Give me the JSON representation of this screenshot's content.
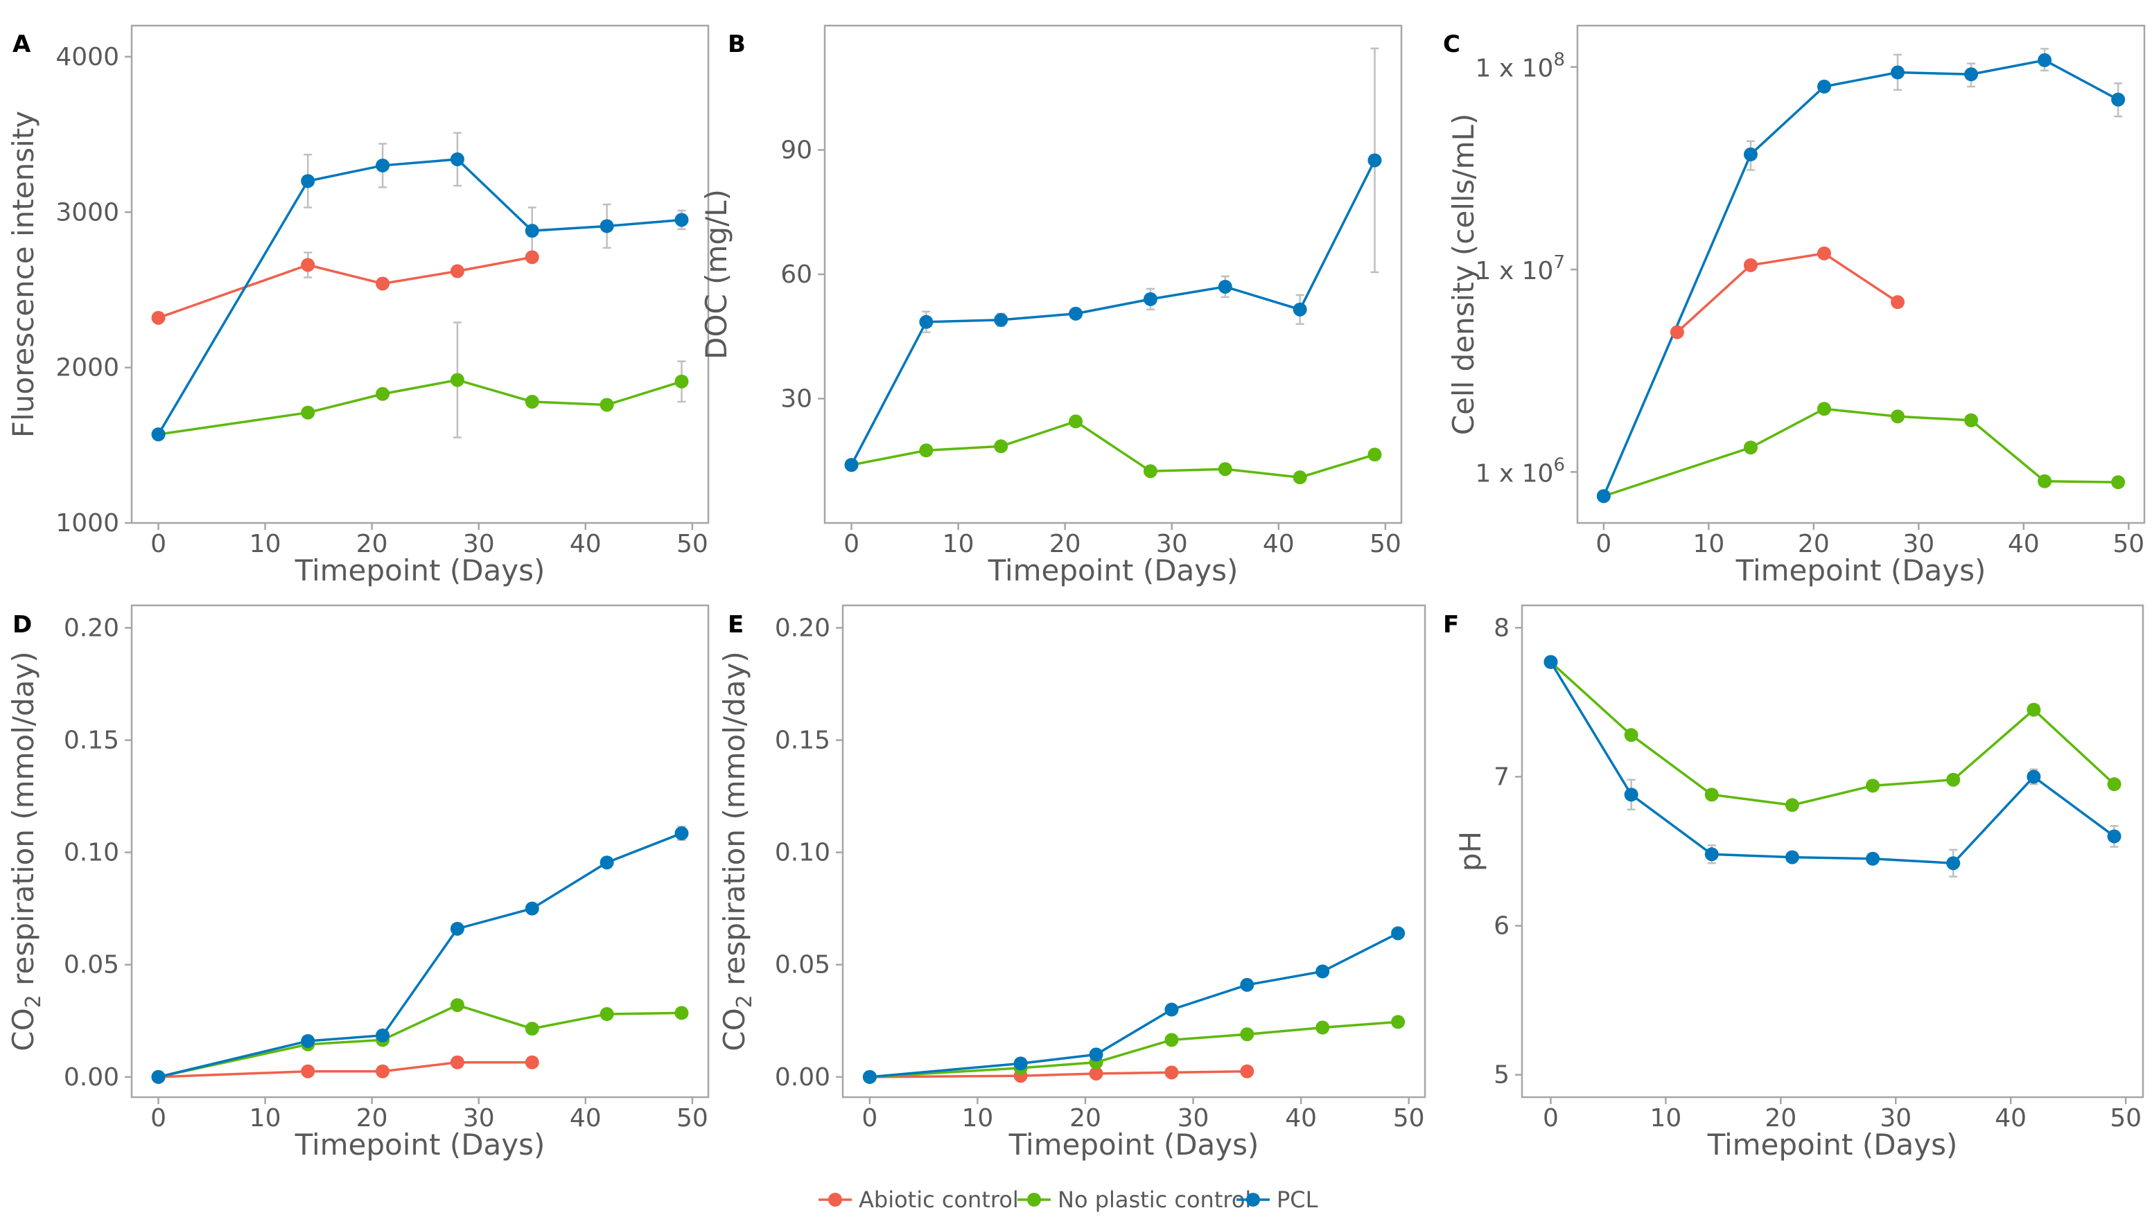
{
  "colors": {
    "abiotic": "#F0604D",
    "no_plastic": "#5DB90B",
    "pcl": "#0077BB",
    "errorbar": "#BFBFBF",
    "axis_text": "#595959",
    "frame": "#A6A6A6"
  },
  "legend": {
    "items": [
      {
        "key": "abiotic",
        "label": "Abiotic control"
      },
      {
        "key": "no_plastic",
        "label": "No plastic control"
      },
      {
        "key": "pcl",
        "label": "PCL"
      }
    ]
  },
  "chart_data": [
    {
      "panel": "A",
      "type": "line",
      "xlabel": "Timepoint (Days)",
      "ylabel": "Fluorescence intensity",
      "xlim": [
        -2.5,
        51.5
      ],
      "ylim": [
        1000,
        4200
      ],
      "xticks": [
        "0",
        "10",
        "20",
        "30",
        "40",
        "50"
      ],
      "yticks": [
        {
          "v": 1000,
          "label": "1000"
        },
        {
          "v": 2000,
          "label": "2000"
        },
        {
          "v": 3000,
          "label": "3000"
        },
        {
          "v": 4000,
          "label": "4000"
        }
      ],
      "series": [
        {
          "key": "abiotic",
          "name": "Abiotic control",
          "x": [
            0,
            14,
            21,
            28,
            35
          ],
          "y": [
            2320,
            2660,
            2540,
            2620,
            2710
          ],
          "err": [
            0,
            80,
            0,
            0,
            0
          ]
        },
        {
          "key": "no_plastic",
          "name": "No plastic control",
          "x": [
            0,
            14,
            21,
            28,
            35,
            42,
            49
          ],
          "y": [
            1570,
            1710,
            1830,
            1920,
            1780,
            1760,
            1910
          ],
          "err": [
            0,
            0,
            0,
            370,
            0,
            0,
            130
          ]
        },
        {
          "key": "pcl",
          "name": "PCL",
          "x": [
            0,
            14,
            21,
            28,
            35,
            42,
            49
          ],
          "y": [
            1570,
            3200,
            3300,
            3340,
            2880,
            2910,
            2950
          ],
          "err": [
            0,
            170,
            140,
            170,
            150,
            140,
            60
          ]
        }
      ]
    },
    {
      "panel": "B",
      "type": "line",
      "xlabel": "Timepoint (Days)",
      "ylabel": "DOC (mg/L)",
      "xlim": [
        -2.5,
        51.5
      ],
      "ylim": [
        0,
        120
      ],
      "xticks": [
        "0",
        "10",
        "20",
        "30",
        "40",
        "50"
      ],
      "yticks": [
        {
          "v": 30,
          "label": "30"
        },
        {
          "v": 60,
          "label": "60"
        },
        {
          "v": 90,
          "label": "90"
        }
      ],
      "series": [
        {
          "key": "no_plastic",
          "name": "No plastic control",
          "x": [
            0,
            7,
            14,
            21,
            28,
            35,
            42,
            49
          ],
          "y": [
            14,
            17.5,
            18.5,
            24.5,
            12.5,
            13,
            11,
            16.5
          ],
          "err": [
            0,
            0,
            0,
            0,
            0,
            0,
            0,
            0
          ]
        },
        {
          "key": "pcl",
          "name": "PCL",
          "x": [
            0,
            7,
            14,
            21,
            28,
            35,
            42,
            49
          ],
          "y": [
            14,
            48.5,
            49,
            50.5,
            54,
            57,
            51.5,
            87.5
          ],
          "err": [
            0,
            2.5,
            1.5,
            0,
            2.5,
            2.5,
            3.5,
            27
          ]
        }
      ]
    },
    {
      "panel": "C",
      "type": "line",
      "yscale": "log",
      "xlabel": "Timepoint (Days)",
      "ylabel": "Cell density (cells/mL)",
      "xlim": [
        -2.5,
        51.5
      ],
      "ylim": [
        560000,
        160000000
      ],
      "xticks": [
        "0",
        "10",
        "20",
        "30",
        "40",
        "50"
      ],
      "yticks": [
        {
          "v": 1000000,
          "base": "1 x 10",
          "exp": "6"
        },
        {
          "v": 10000000,
          "base": "1 x 10",
          "exp": "7"
        },
        {
          "v": 100000000,
          "base": "1 x 10",
          "exp": "8"
        }
      ],
      "series": [
        {
          "key": "abiotic",
          "name": "Abiotic control",
          "x": [
            7,
            14,
            21,
            28
          ],
          "y": [
            4900000,
            10500000,
            12000000,
            6900000
          ],
          "err_lo": [
            0,
            0,
            0,
            0
          ],
          "err_hi": [
            0,
            0,
            0,
            0
          ]
        },
        {
          "key": "no_plastic",
          "name": "No plastic control",
          "x": [
            0,
            14,
            21,
            28,
            35,
            42,
            49
          ],
          "y": [
            760000,
            1320000,
            2050000,
            1880000,
            1800000,
            900000,
            890000
          ],
          "err_lo": [
            0,
            0,
            0,
            0,
            0,
            0,
            0
          ],
          "err_hi": [
            0,
            0,
            0,
            0,
            0,
            0,
            0
          ]
        },
        {
          "key": "pcl",
          "name": "PCL",
          "x": [
            0,
            14,
            21,
            28,
            35,
            42,
            49
          ],
          "y": [
            760000,
            37000000,
            80000000,
            94000000,
            92000000,
            108000000,
            69000000
          ],
          "err_lo": [
            0,
            31000000,
            0,
            77000000,
            80000000,
            96000000,
            57000000
          ],
          "err_hi": [
            0,
            43000000,
            0,
            115000000,
            104000000,
            123000000,
            83000000
          ]
        }
      ]
    },
    {
      "panel": "D",
      "type": "line",
      "xlabel": "Timepoint (Days)",
      "ylabel": "CO2 respiration (mmol/day)",
      "ylabel_parts": {
        "pre": "CO",
        "sub": "2",
        "post": " respiration (mmol/day)"
      },
      "xlim": [
        -2.5,
        51.5
      ],
      "ylim": [
        -0.009,
        0.21
      ],
      "xticks": [
        "0",
        "10",
        "20",
        "30",
        "40",
        "50"
      ],
      "yticks": [
        {
          "v": 0,
          "label": "0.00"
        },
        {
          "v": 0.05,
          "label": "0.05"
        },
        {
          "v": 0.1,
          "label": "0.10"
        },
        {
          "v": 0.15,
          "label": "0.15"
        },
        {
          "v": 0.2,
          "label": "0.20"
        }
      ],
      "series": [
        {
          "key": "abiotic",
          "name": "Abiotic control",
          "x": [
            0,
            14,
            21,
            28,
            35
          ],
          "y": [
            0,
            0.0025,
            0.0025,
            0.0065,
            0.0065
          ],
          "err": [
            0,
            0,
            0,
            0,
            0
          ]
        },
        {
          "key": "no_plastic",
          "name": "No plastic control",
          "x": [
            0,
            14,
            21,
            28,
            35,
            42,
            49
          ],
          "y": [
            0,
            0.0145,
            0.0165,
            0.032,
            0.0215,
            0.028,
            0.0285
          ],
          "err": [
            0,
            0,
            0,
            0,
            0,
            0,
            0
          ]
        },
        {
          "key": "pcl",
          "name": "PCL",
          "x": [
            0,
            14,
            21,
            28,
            35,
            42,
            49
          ],
          "y": [
            0,
            0.016,
            0.0185,
            0.066,
            0.075,
            0.0955,
            0.1085
          ],
          "err": [
            0,
            0.0015,
            0.0015,
            0.002,
            0.002,
            0.002,
            0.003
          ]
        }
      ]
    },
    {
      "panel": "E",
      "type": "line",
      "xlabel": "Timepoint (Days)",
      "ylabel": "CO2 respiration (mmol/day)",
      "ylabel_parts": {
        "pre": "CO",
        "sub": "2",
        "post": " respiration (mmol/day)"
      },
      "xlim": [
        -2.5,
        51.5
      ],
      "ylim": [
        -0.009,
        0.21
      ],
      "xticks": [
        "0",
        "10",
        "20",
        "30",
        "40",
        "50"
      ],
      "yticks": [
        {
          "v": 0,
          "label": "0.00"
        },
        {
          "v": 0.05,
          "label": "0.05"
        },
        {
          "v": 0.1,
          "label": "0.10"
        },
        {
          "v": 0.15,
          "label": "0.15"
        },
        {
          "v": 0.2,
          "label": "0.20"
        }
      ],
      "series": [
        {
          "key": "abiotic",
          "name": "Abiotic control",
          "x": [
            0,
            14,
            21,
            28,
            35
          ],
          "y": [
            0,
            0.0005,
            0.0015,
            0.002,
            0.0025
          ],
          "err": [
            0,
            0,
            0,
            0,
            0
          ]
        },
        {
          "key": "no_plastic",
          "name": "No plastic control",
          "x": [
            0,
            14,
            21,
            28,
            35,
            42,
            49
          ],
          "y": [
            0,
            0.004,
            0.0065,
            0.0165,
            0.019,
            0.022,
            0.0245
          ],
          "err": [
            0,
            0,
            0,
            0,
            0,
            0,
            0
          ]
        },
        {
          "key": "pcl",
          "name": "PCL",
          "x": [
            0,
            14,
            21,
            28,
            35,
            42,
            49
          ],
          "y": [
            0,
            0.006,
            0.01,
            0.03,
            0.041,
            0.047,
            0.064
          ],
          "err": [
            0,
            0.0015,
            0.0015,
            0.0015,
            0.0015,
            0.0015,
            0.0015
          ]
        }
      ]
    },
    {
      "panel": "F",
      "type": "line",
      "xlabel": "Timepoint (Days)",
      "ylabel": "pH",
      "xlim": [
        -2.5,
        51.5
      ],
      "ylim": [
        4.85,
        8.15
      ],
      "xticks": [
        "0",
        "10",
        "20",
        "30",
        "40",
        "50"
      ],
      "yticks": [
        {
          "v": 5,
          "label": "5"
        },
        {
          "v": 6,
          "label": "6"
        },
        {
          "v": 7,
          "label": "7"
        },
        {
          "v": 8,
          "label": "8"
        }
      ],
      "series": [
        {
          "key": "no_plastic",
          "name": "No plastic control",
          "x": [
            0,
            7,
            14,
            21,
            28,
            35,
            42,
            49
          ],
          "y": [
            7.77,
            7.28,
            6.88,
            6.81,
            6.94,
            6.98,
            7.45,
            6.95
          ],
          "err": [
            0,
            0,
            0,
            0,
            0,
            0,
            0,
            0
          ]
        },
        {
          "key": "pcl",
          "name": "PCL",
          "x": [
            0,
            7,
            14,
            21,
            28,
            35,
            42,
            49
          ],
          "y": [
            7.77,
            6.88,
            6.48,
            6.46,
            6.45,
            6.42,
            7.0,
            6.6
          ],
          "err": [
            0,
            0.1,
            0.06,
            0,
            0,
            0.09,
            0.05,
            0.07
          ]
        }
      ]
    }
  ]
}
